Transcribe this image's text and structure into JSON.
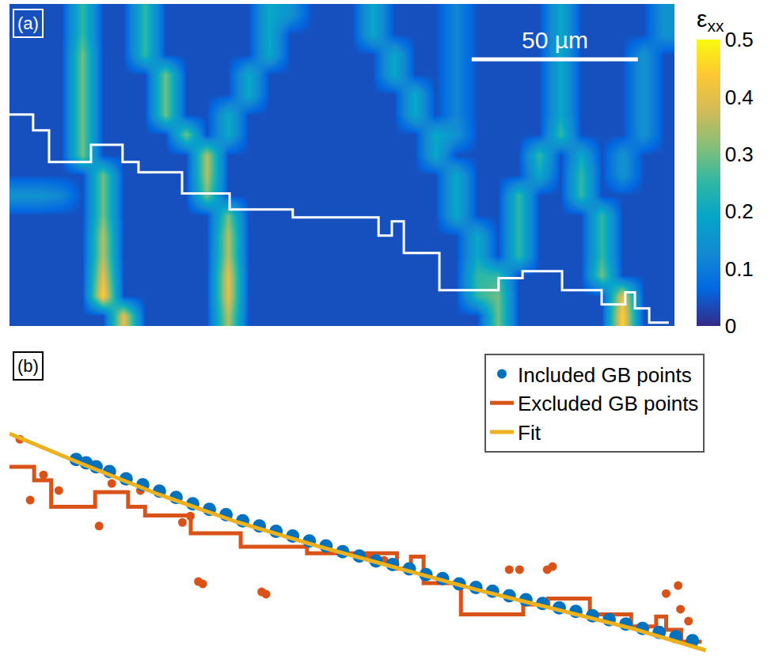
{
  "chart_data": [
    {
      "panel": "(a)",
      "type": "heatmap",
      "xlim": [
        0,
        200
      ],
      "ylim": [
        97,
        0
      ],
      "tick_labels": false,
      "colorbar": {
        "title": "ε",
        "subscript": "xx",
        "range": [
          0,
          0.5
        ],
        "ticks": [
          0,
          0.1,
          0.2,
          0.3,
          0.4,
          0.5
        ]
      },
      "scale_bar": {
        "length": 50,
        "label": "50 µm"
      },
      "cells": [
        [
          0.04,
          0.04,
          0.04,
          0.25,
          0.04,
          0.04,
          0.25,
          0.04,
          0.04,
          0.04,
          0.04,
          0.04,
          0.2,
          0.15,
          0.04,
          0.04,
          0.04,
          0.2,
          0.04,
          0.04,
          0.04,
          0.12,
          0.04,
          0.04,
          0.04,
          0.04,
          0.2,
          0.04,
          0.04,
          0.04,
          0.04,
          0.15
        ],
        [
          0.04,
          0.04,
          0.04,
          0.25,
          0.04,
          0.04,
          0.25,
          0.04,
          0.04,
          0.04,
          0.04,
          0.04,
          0.2,
          0.04,
          0.04,
          0.04,
          0.04,
          0.2,
          0.04,
          0.04,
          0.04,
          0.12,
          0.04,
          0.04,
          0.04,
          0.04,
          0.2,
          0.04,
          0.04,
          0.04,
          0.04,
          0.15
        ],
        [
          0.04,
          0.04,
          0.04,
          0.3,
          0.04,
          0.04,
          0.25,
          0.04,
          0.04,
          0.04,
          0.04,
          0.04,
          0.2,
          0.04,
          0.04,
          0.04,
          0.04,
          0.04,
          0.2,
          0.04,
          0.04,
          0.12,
          0.04,
          0.04,
          0.04,
          0.04,
          0.2,
          0.04,
          0.04,
          0.04,
          0.15,
          0.04
        ],
        [
          0.04,
          0.04,
          0.04,
          0.3,
          0.04,
          0.04,
          0.04,
          0.3,
          0.04,
          0.04,
          0.04,
          0.2,
          0.04,
          0.04,
          0.04,
          0.04,
          0.04,
          0.04,
          0.2,
          0.04,
          0.04,
          0.12,
          0.04,
          0.04,
          0.04,
          0.04,
          0.2,
          0.04,
          0.04,
          0.04,
          0.15,
          0.04
        ],
        [
          0.04,
          0.04,
          0.04,
          0.3,
          0.04,
          0.04,
          0.04,
          0.3,
          0.04,
          0.04,
          0.04,
          0.2,
          0.04,
          0.04,
          0.04,
          0.04,
          0.04,
          0.04,
          0.04,
          0.2,
          0.04,
          0.12,
          0.04,
          0.04,
          0.04,
          0.04,
          0.2,
          0.04,
          0.04,
          0.04,
          0.15,
          0.04
        ],
        [
          0.04,
          0.04,
          0.04,
          0.3,
          0.04,
          0.04,
          0.04,
          0.3,
          0.04,
          0.04,
          0.2,
          0.04,
          0.04,
          0.04,
          0.04,
          0.04,
          0.04,
          0.04,
          0.04,
          0.2,
          0.04,
          0.12,
          0.04,
          0.04,
          0.04,
          0.04,
          0.2,
          0.04,
          0.04,
          0.04,
          0.15,
          0.04
        ],
        [
          0.04,
          0.04,
          0.04,
          0.3,
          0.04,
          0.04,
          0.04,
          0.04,
          0.3,
          0.04,
          0.2,
          0.04,
          0.04,
          0.04,
          0.04,
          0.04,
          0.04,
          0.04,
          0.04,
          0.04,
          0.2,
          0.15,
          0.04,
          0.04,
          0.04,
          0.04,
          0.25,
          0.04,
          0.04,
          0.04,
          0.15,
          0.04
        ],
        [
          0.04,
          0.04,
          0.04,
          0.3,
          0.04,
          0.04,
          0.04,
          0.04,
          0.04,
          0.35,
          0.04,
          0.04,
          0.04,
          0.04,
          0.04,
          0.04,
          0.04,
          0.04,
          0.04,
          0.04,
          0.2,
          0.04,
          0.04,
          0.04,
          0.04,
          0.25,
          0.04,
          0.2,
          0.04,
          0.15,
          0.04,
          0.04
        ],
        [
          0.04,
          0.04,
          0.04,
          0.04,
          0.3,
          0.04,
          0.04,
          0.04,
          0.04,
          0.35,
          0.04,
          0.04,
          0.04,
          0.04,
          0.04,
          0.04,
          0.04,
          0.04,
          0.04,
          0.04,
          0.04,
          0.2,
          0.04,
          0.04,
          0.04,
          0.2,
          0.04,
          0.25,
          0.04,
          0.15,
          0.04,
          0.04
        ],
        [
          0.15,
          0.15,
          0.12,
          0.04,
          0.3,
          0.04,
          0.04,
          0.04,
          0.04,
          0.3,
          0.04,
          0.04,
          0.04,
          0.04,
          0.04,
          0.04,
          0.04,
          0.04,
          0.04,
          0.04,
          0.04,
          0.2,
          0.04,
          0.04,
          0.25,
          0.04,
          0.04,
          0.25,
          0.04,
          0.04,
          0.04,
          0.04
        ],
        [
          0.04,
          0.04,
          0.04,
          0.04,
          0.3,
          0.04,
          0.04,
          0.04,
          0.04,
          0.04,
          0.3,
          0.04,
          0.04,
          0.04,
          0.04,
          0.04,
          0.04,
          0.04,
          0.04,
          0.04,
          0.04,
          0.2,
          0.04,
          0.04,
          0.25,
          0.04,
          0.04,
          0.04,
          0.25,
          0.04,
          0.04,
          0.04
        ],
        [
          0.04,
          0.04,
          0.04,
          0.04,
          0.35,
          0.04,
          0.04,
          0.04,
          0.04,
          0.04,
          0.35,
          0.04,
          0.04,
          0.04,
          0.04,
          0.04,
          0.04,
          0.04,
          0.04,
          0.04,
          0.04,
          0.04,
          0.2,
          0.04,
          0.25,
          0.04,
          0.04,
          0.04,
          0.25,
          0.04,
          0.04,
          0.04
        ],
        [
          0.04,
          0.04,
          0.04,
          0.04,
          0.35,
          0.04,
          0.04,
          0.04,
          0.04,
          0.04,
          0.35,
          0.04,
          0.04,
          0.04,
          0.04,
          0.04,
          0.04,
          0.04,
          0.04,
          0.04,
          0.04,
          0.04,
          0.2,
          0.04,
          0.25,
          0.04,
          0.04,
          0.04,
          0.25,
          0.04,
          0.04,
          0.04
        ],
        [
          0.04,
          0.04,
          0.04,
          0.04,
          0.4,
          0.04,
          0.04,
          0.04,
          0.04,
          0.04,
          0.4,
          0.04,
          0.04,
          0.04,
          0.04,
          0.04,
          0.04,
          0.04,
          0.04,
          0.04,
          0.04,
          0.04,
          0.25,
          0.25,
          0.04,
          0.04,
          0.04,
          0.04,
          0.3,
          0.04,
          0.04,
          0.04
        ],
        [
          0.04,
          0.04,
          0.04,
          0.04,
          0.45,
          0.04,
          0.04,
          0.04,
          0.04,
          0.04,
          0.4,
          0.04,
          0.04,
          0.04,
          0.04,
          0.04,
          0.04,
          0.04,
          0.04,
          0.04,
          0.04,
          0.04,
          0.25,
          0.3,
          0.04,
          0.04,
          0.04,
          0.04,
          0.04,
          0.4,
          0.04,
          0.04
        ],
        [
          0.04,
          0.04,
          0.04,
          0.04,
          0.04,
          0.4,
          0.04,
          0.04,
          0.04,
          0.04,
          0.35,
          0.04,
          0.04,
          0.04,
          0.04,
          0.04,
          0.04,
          0.04,
          0.04,
          0.04,
          0.04,
          0.04,
          0.04,
          0.3,
          0.04,
          0.04,
          0.04,
          0.04,
          0.04,
          0.45,
          0.04,
          0.04
        ]
      ],
      "series": [
        {
          "type": "line",
          "line_style": "solid",
          "color": "#ffffff",
          "x": [
            0,
            7.1,
            7.1,
            11.9,
            11.9,
            24.5,
            24.5,
            34.0,
            34.0,
            38.8,
            38.8,
            51.9,
            51.9,
            66.2,
            66.2,
            85.2,
            85.2,
            111.0,
            111.0,
            115.0,
            115.0,
            118.6,
            118.6,
            129.3,
            129.3,
            147.1,
            147.1,
            154.3,
            154.3,
            166.2,
            166.2,
            178.1,
            178.1,
            185.2,
            185.2,
            188.1,
            188.1,
            192.4,
            192.4,
            198.3
          ],
          "values": [
            33.3,
            33.3,
            38.1,
            38.1,
            47.6,
            47.6,
            42.4,
            42.4,
            47.6,
            47.6,
            50.7,
            50.7,
            57.1,
            57.1,
            61.9,
            61.9,
            64.3,
            64.3,
            69.8,
            69.8,
            65.5,
            65.5,
            75.0,
            75.0,
            86.2,
            86.2,
            82.6,
            82.6,
            80.5,
            80.5,
            86.2,
            86.2,
            90.5,
            90.5,
            86.9,
            86.9,
            91.7,
            91.7,
            96.0,
            96.0
          ]
        }
      ]
    },
    {
      "panel": "(b)",
      "type": "scatter",
      "xlim": [
        0,
        211
      ],
      "ylim": [
        94.5,
        0
      ],
      "tick_labels": false,
      "legend": "top right",
      "series": [
        {
          "name": "Included GB points",
          "type": "scatter",
          "marker": "circle",
          "color": "#0072bd",
          "x": [
            20,
            23,
            26,
            30,
            35,
            40,
            45,
            50,
            55,
            60,
            65,
            70,
            75,
            80,
            85,
            90,
            95,
            100,
            105,
            110,
            115,
            120,
            125,
            130,
            135,
            140,
            145,
            150,
            155,
            160,
            165,
            170,
            175,
            180,
            185,
            190,
            195,
            200,
            205
          ],
          "values": [
            34.0,
            35.0,
            36.2,
            37.6,
            39.8,
            41.6,
            43.5,
            45.4,
            47.3,
            49.0,
            50.6,
            52.4,
            54.0,
            55.6,
            57.0,
            58.5,
            60.0,
            61.7,
            63.0,
            64.5,
            65.6,
            66.9,
            68.6,
            69.8,
            71.4,
            72.5,
            73.6,
            75.0,
            76.2,
            77.3,
            78.6,
            79.7,
            81.0,
            82.2,
            83.5,
            84.8,
            86.0,
            87.3,
            88.5
          ]
        },
        {
          "name": "Excluded GB points",
          "type": "line",
          "line_style": "solid",
          "color": "#d95319",
          "x": [
            0,
            7.4,
            7.4,
            12.5,
            12.5,
            25.7,
            25.7,
            35.6,
            35.6,
            40.7,
            40.7,
            54.4,
            54.4,
            69.4,
            69.4,
            89.3,
            89.3,
            116.3,
            116.3,
            120.5,
            120.5,
            124.3,
            124.3,
            135.5,
            135.5,
            154.2,
            154.2,
            161.7,
            161.7,
            174.2,
            174.2,
            186.6,
            186.6,
            194.1,
            194.1,
            197.1,
            197.1,
            201.6,
            201.6,
            207.8
          ],
          "values": [
            36.2,
            36.2,
            40.2,
            40.2,
            48.2,
            48.2,
            43.8,
            43.8,
            48.2,
            48.2,
            50.8,
            50.8,
            56.2,
            56.2,
            60.2,
            60.2,
            62.2,
            62.2,
            66.8,
            66.8,
            63.2,
            63.2,
            71.2,
            71.2,
            80.6,
            80.6,
            77.6,
            77.6,
            75.8,
            75.8,
            80.6,
            80.6,
            84.2,
            84.2,
            81.2,
            81.2,
            85.2,
            85.2,
            88.8,
            88.8
          ]
        },
        {
          "name": "Excluded GB points",
          "type": "scatter",
          "marker": "circle",
          "color": "#d95319",
          "x": [
            3.1,
            6.2,
            10.2,
            14.8,
            26.9,
            30.7,
            39.3,
            56.7,
            58.0,
            75.7,
            77.0,
            51.9,
            54.3,
            107.6,
            112.4,
            150.0,
            153.1,
            161.4,
            163.0,
            197.1,
            200.7,
            201.4,
            203.8
          ],
          "values": [
            27.9,
            46.2,
            38.6,
            43.3,
            54.0,
            41.2,
            43.3,
            70.7,
            71.4,
            73.8,
            74.5,
            52.9,
            51.0,
            62.9,
            64.3,
            67.1,
            67.1,
            67.1,
            66.2,
            74.3,
            71.9,
            79.0,
            82.6
          ]
        },
        {
          "name": "Fit",
          "type": "line",
          "line_style": "solid",
          "color": "#edb120",
          "x": [
            0,
            21.0,
            44.8,
            68.6,
            92.4,
            116.2,
            140.0,
            163.8,
            187.6,
            209.0
          ],
          "values": [
            26.2,
            35.0,
            44.5,
            52.9,
            60.0,
            66.4,
            73.1,
            79.0,
            85.0,
            91.4
          ]
        }
      ]
    }
  ]
}
